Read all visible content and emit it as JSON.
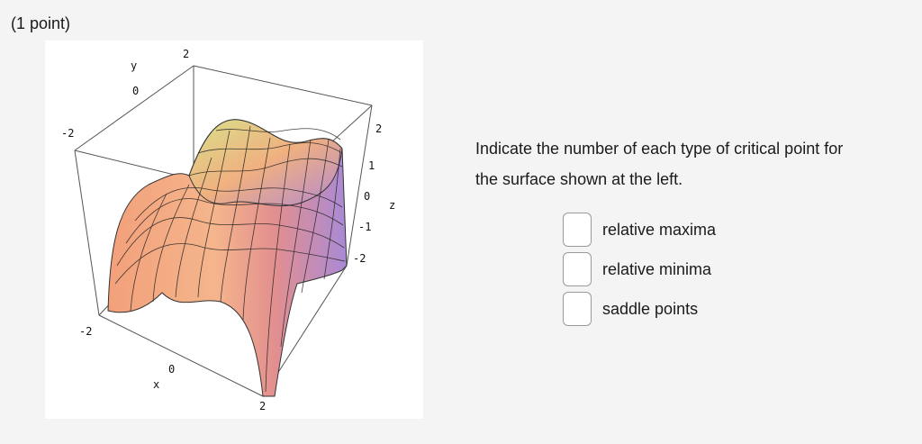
{
  "header": {
    "points_label": "(1 point)"
  },
  "figure": {
    "y_axis_label": "y",
    "x_axis_label": "x",
    "z_axis_label": "z",
    "y_ticks": [
      "2",
      "0",
      "-2"
    ],
    "x_ticks": [
      "-2",
      "0",
      "2"
    ],
    "z_ticks": [
      "2",
      "1",
      "0",
      "-1",
      "-2"
    ]
  },
  "question": {
    "prompt": "Indicate the number of each type of critical point for the surface shown at the left."
  },
  "answers": [
    {
      "label": "relative maxima",
      "value": ""
    },
    {
      "label": "relative minima",
      "value": ""
    },
    {
      "label": "saddle points",
      "value": ""
    }
  ]
}
